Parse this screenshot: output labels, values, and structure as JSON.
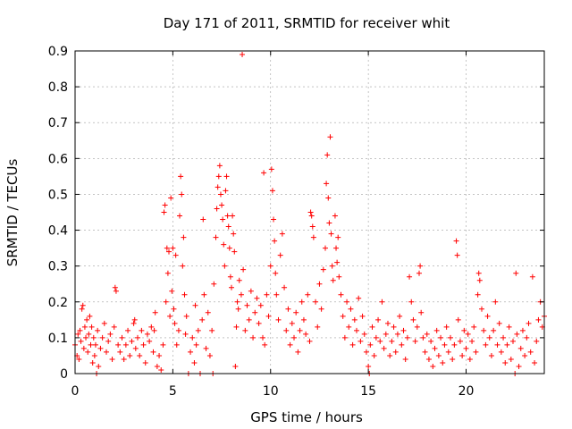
{
  "chart_data": {
    "type": "scatter",
    "title": "Day 171 of 2011, SRMTID for receiver whit",
    "xlabel": "GPS time / hours",
    "ylabel": "SRMTID / TECUs",
    "xlim": [
      0,
      24
    ],
    "ylim": [
      0,
      0.9
    ],
    "xticks": [
      0,
      5,
      10,
      15,
      20
    ],
    "yticks": [
      0,
      0.1,
      0.2,
      0.3,
      0.4,
      0.5,
      0.6,
      0.7,
      0.8,
      0.9
    ],
    "xtick_labels": [
      "0",
      "5",
      "10",
      "15",
      "20"
    ],
    "ytick_labels": [
      "0",
      "0.1",
      "0.2",
      "0.3",
      "0.4",
      "0.5",
      "0.6",
      "0.7",
      "0.8",
      "0.9"
    ],
    "grid": true,
    "marker": "+",
    "color": "#ff0000",
    "series": [
      {
        "name": "SRMTID",
        "points": [
          [
            0.0,
            0.08
          ],
          [
            0.1,
            0.05
          ],
          [
            0.15,
            0.11
          ],
          [
            0.2,
            0.04
          ],
          [
            0.25,
            0.12
          ],
          [
            0.3,
            0.09
          ],
          [
            0.35,
            0.18
          ],
          [
            0.4,
            0.19
          ],
          [
            0.45,
            0.07
          ],
          [
            0.5,
            0.13
          ],
          [
            0.55,
            0.1
          ],
          [
            0.6,
            0.15
          ],
          [
            0.65,
            0.06
          ],
          [
            0.7,
            0.11
          ],
          [
            0.75,
            0.16
          ],
          [
            0.8,
            0.08
          ],
          [
            0.85,
            0.13
          ],
          [
            0.9,
            0.03
          ],
          [
            0.95,
            0.1
          ],
          [
            1.0,
            0.05
          ],
          [
            1.05,
            0.08
          ],
          [
            1.1,
            0.0
          ],
          [
            1.15,
            0.12
          ],
          [
            1.2,
            0.02
          ],
          [
            1.3,
            0.07
          ],
          [
            1.4,
            0.1
          ],
          [
            1.5,
            0.14
          ],
          [
            1.6,
            0.06
          ],
          [
            1.7,
            0.09
          ],
          [
            1.8,
            0.11
          ],
          [
            1.9,
            0.04
          ],
          [
            2.0,
            0.13
          ],
          [
            2.05,
            0.24
          ],
          [
            2.1,
            0.23
          ],
          [
            2.2,
            0.08
          ],
          [
            2.3,
            0.06
          ],
          [
            2.4,
            0.1
          ],
          [
            2.5,
            0.04
          ],
          [
            2.6,
            0.08
          ],
          [
            2.7,
            0.12
          ],
          [
            2.8,
            0.05
          ],
          [
            2.9,
            0.09
          ],
          [
            3.0,
            0.14
          ],
          [
            3.05,
            0.15
          ],
          [
            3.1,
            0.07
          ],
          [
            3.2,
            0.1
          ],
          [
            3.3,
            0.05
          ],
          [
            3.4,
            0.12
          ],
          [
            3.5,
            0.08
          ],
          [
            3.6,
            0.03
          ],
          [
            3.7,
            0.11
          ],
          [
            3.8,
            0.09
          ],
          [
            3.9,
            0.13
          ],
          [
            4.0,
            0.06
          ],
          [
            4.05,
            0.12
          ],
          [
            4.1,
            0.17
          ],
          [
            4.2,
            0.02
          ],
          [
            4.3,
            0.05
          ],
          [
            4.4,
            0.01
          ],
          [
            4.5,
            0.08
          ],
          [
            4.55,
            0.45
          ],
          [
            4.6,
            0.47
          ],
          [
            4.65,
            0.2
          ],
          [
            4.7,
            0.35
          ],
          [
            4.75,
            0.28
          ],
          [
            4.8,
            0.34
          ],
          [
            4.85,
            0.16
          ],
          [
            4.9,
            0.49
          ],
          [
            4.95,
            0.23
          ],
          [
            5.0,
            0.35
          ],
          [
            5.05,
            0.18
          ],
          [
            5.1,
            0.14
          ],
          [
            5.15,
            0.33
          ],
          [
            5.2,
            0.08
          ],
          [
            5.3,
            0.12
          ],
          [
            5.35,
            0.44
          ],
          [
            5.4,
            0.55
          ],
          [
            5.45,
            0.5
          ],
          [
            5.5,
            0.3
          ],
          [
            5.55,
            0.38
          ],
          [
            5.6,
            0.22
          ],
          [
            5.65,
            0.11
          ],
          [
            5.7,
            0.16
          ],
          [
            5.8,
            0.0
          ],
          [
            5.9,
            0.06
          ],
          [
            6.0,
            0.1
          ],
          [
            6.1,
            0.03
          ],
          [
            6.15,
            0.19
          ],
          [
            6.2,
            0.08
          ],
          [
            6.3,
            0.12
          ],
          [
            6.4,
            0.0
          ],
          [
            6.5,
            0.15
          ],
          [
            6.55,
            0.43
          ],
          [
            6.6,
            0.22
          ],
          [
            6.7,
            0.07
          ],
          [
            6.8,
            0.17
          ],
          [
            6.9,
            0.05
          ],
          [
            7.0,
            0.12
          ],
          [
            7.05,
            0.0
          ],
          [
            7.1,
            0.25
          ],
          [
            7.2,
            0.38
          ],
          [
            7.25,
            0.46
          ],
          [
            7.3,
            0.52
          ],
          [
            7.35,
            0.55
          ],
          [
            7.4,
            0.58
          ],
          [
            7.45,
            0.5
          ],
          [
            7.5,
            0.47
          ],
          [
            7.55,
            0.43
          ],
          [
            7.6,
            0.36
          ],
          [
            7.65,
            0.3
          ],
          [
            7.7,
            0.51
          ],
          [
            7.75,
            0.55
          ],
          [
            7.8,
            0.44
          ],
          [
            7.85,
            0.41
          ],
          [
            7.9,
            0.35
          ],
          [
            7.95,
            0.27
          ],
          [
            8.0,
            0.24
          ],
          [
            8.05,
            0.44
          ],
          [
            8.1,
            0.39
          ],
          [
            8.15,
            0.34
          ],
          [
            8.2,
            0.02
          ],
          [
            8.25,
            0.13
          ],
          [
            8.3,
            0.2
          ],
          [
            8.35,
            0.18
          ],
          [
            8.4,
            0.26
          ],
          [
            8.5,
            0.22
          ],
          [
            8.55,
            0.89
          ],
          [
            8.6,
            0.29
          ],
          [
            8.7,
            0.12
          ],
          [
            8.8,
            0.19
          ],
          [
            8.9,
            0.15
          ],
          [
            9.0,
            0.23
          ],
          [
            9.1,
            0.1
          ],
          [
            9.2,
            0.17
          ],
          [
            9.3,
            0.21
          ],
          [
            9.4,
            0.14
          ],
          [
            9.5,
            0.19
          ],
          [
            9.6,
            0.1
          ],
          [
            9.65,
            0.56
          ],
          [
            9.7,
            0.08
          ],
          [
            9.8,
            0.22
          ],
          [
            9.9,
            0.16
          ],
          [
            10.0,
            0.3
          ],
          [
            10.05,
            0.57
          ],
          [
            10.1,
            0.51
          ],
          [
            10.15,
            0.43
          ],
          [
            10.2,
            0.37
          ],
          [
            10.25,
            0.28
          ],
          [
            10.3,
            0.22
          ],
          [
            10.4,
            0.15
          ],
          [
            10.5,
            0.33
          ],
          [
            10.6,
            0.39
          ],
          [
            10.7,
            0.24
          ],
          [
            10.8,
            0.12
          ],
          [
            10.9,
            0.18
          ],
          [
            11.0,
            0.08
          ],
          [
            11.1,
            0.14
          ],
          [
            11.2,
            0.1
          ],
          [
            11.3,
            0.17
          ],
          [
            11.4,
            0.06
          ],
          [
            11.5,
            0.12
          ],
          [
            11.6,
            0.2
          ],
          [
            11.7,
            0.15
          ],
          [
            11.8,
            0.11
          ],
          [
            11.9,
            0.22
          ],
          [
            12.0,
            0.09
          ],
          [
            12.05,
            0.45
          ],
          [
            12.1,
            0.44
          ],
          [
            12.15,
            0.41
          ],
          [
            12.2,
            0.38
          ],
          [
            12.3,
            0.2
          ],
          [
            12.4,
            0.13
          ],
          [
            12.5,
            0.25
          ],
          [
            12.6,
            0.18
          ],
          [
            12.7,
            0.29
          ],
          [
            12.8,
            0.35
          ],
          [
            12.85,
            0.53
          ],
          [
            12.9,
            0.61
          ],
          [
            12.95,
            0.49
          ],
          [
            13.0,
            0.42
          ],
          [
            13.05,
            0.66
          ],
          [
            13.1,
            0.39
          ],
          [
            13.15,
            0.3
          ],
          [
            13.2,
            0.26
          ],
          [
            13.3,
            0.44
          ],
          [
            13.35,
            0.35
          ],
          [
            13.4,
            0.31
          ],
          [
            13.45,
            0.38
          ],
          [
            13.5,
            0.27
          ],
          [
            13.6,
            0.22
          ],
          [
            13.7,
            0.16
          ],
          [
            13.8,
            0.1
          ],
          [
            13.9,
            0.2
          ],
          [
            14.0,
            0.13
          ],
          [
            14.1,
            0.18
          ],
          [
            14.2,
            0.08
          ],
          [
            14.3,
            0.15
          ],
          [
            14.4,
            0.12
          ],
          [
            14.5,
            0.21
          ],
          [
            14.6,
            0.09
          ],
          [
            14.7,
            0.16
          ],
          [
            14.8,
            0.11
          ],
          [
            14.9,
            0.06
          ],
          [
            15.0,
            0.02
          ],
          [
            15.05,
            0.0
          ],
          [
            15.1,
            0.08
          ],
          [
            15.2,
            0.13
          ],
          [
            15.3,
            0.05
          ],
          [
            15.4,
            0.1
          ],
          [
            15.5,
            0.15
          ],
          [
            15.6,
            0.09
          ],
          [
            15.7,
            0.2
          ],
          [
            15.8,
            0.07
          ],
          [
            15.9,
            0.11
          ],
          [
            16.0,
            0.14
          ],
          [
            16.1,
            0.05
          ],
          [
            16.2,
            0.09
          ],
          [
            16.3,
            0.13
          ],
          [
            16.4,
            0.06
          ],
          [
            16.5,
            0.11
          ],
          [
            16.6,
            0.16
          ],
          [
            16.7,
            0.08
          ],
          [
            16.8,
            0.12
          ],
          [
            16.9,
            0.04
          ],
          [
            17.0,
            0.1
          ],
          [
            17.1,
            0.27
          ],
          [
            17.2,
            0.2
          ],
          [
            17.3,
            0.15
          ],
          [
            17.4,
            0.09
          ],
          [
            17.5,
            0.13
          ],
          [
            17.6,
            0.28
          ],
          [
            17.65,
            0.3
          ],
          [
            17.7,
            0.17
          ],
          [
            17.8,
            0.1
          ],
          [
            17.9,
            0.06
          ],
          [
            18.0,
            0.11
          ],
          [
            18.1,
            0.04
          ],
          [
            18.2,
            0.09
          ],
          [
            18.3,
            0.02
          ],
          [
            18.4,
            0.07
          ],
          [
            18.5,
            0.12
          ],
          [
            18.6,
            0.05
          ],
          [
            18.7,
            0.1
          ],
          [
            18.8,
            0.03
          ],
          [
            18.9,
            0.08
          ],
          [
            19.0,
            0.13
          ],
          [
            19.1,
            0.06
          ],
          [
            19.2,
            0.1
          ],
          [
            19.3,
            0.04
          ],
          [
            19.4,
            0.08
          ],
          [
            19.5,
            0.37
          ],
          [
            19.55,
            0.33
          ],
          [
            19.6,
            0.15
          ],
          [
            19.7,
            0.09
          ],
          [
            19.8,
            0.05
          ],
          [
            19.9,
            0.12
          ],
          [
            20.0,
            0.07
          ],
          [
            20.1,
            0.11
          ],
          [
            20.2,
            0.04
          ],
          [
            20.3,
            0.09
          ],
          [
            20.4,
            0.13
          ],
          [
            20.5,
            0.06
          ],
          [
            20.6,
            0.22
          ],
          [
            20.65,
            0.28
          ],
          [
            20.7,
            0.26
          ],
          [
            20.8,
            0.18
          ],
          [
            20.9,
            0.12
          ],
          [
            21.0,
            0.08
          ],
          [
            21.1,
            0.16
          ],
          [
            21.2,
            0.1
          ],
          [
            21.3,
            0.05
          ],
          [
            21.4,
            0.12
          ],
          [
            21.5,
            0.2
          ],
          [
            21.6,
            0.08
          ],
          [
            21.7,
            0.14
          ],
          [
            21.8,
            0.06
          ],
          [
            21.9,
            0.1
          ],
          [
            22.0,
            0.03
          ],
          [
            22.1,
            0.08
          ],
          [
            22.2,
            0.13
          ],
          [
            22.3,
            0.04
          ],
          [
            22.4,
            0.09
          ],
          [
            22.5,
            0.0
          ],
          [
            22.55,
            0.28
          ],
          [
            22.6,
            0.11
          ],
          [
            22.7,
            0.02
          ],
          [
            22.8,
            0.07
          ],
          [
            22.9,
            0.12
          ],
          [
            23.0,
            0.05
          ],
          [
            23.1,
            0.1
          ],
          [
            23.2,
            0.14
          ],
          [
            23.3,
            0.06
          ],
          [
            23.4,
            0.27
          ],
          [
            23.5,
            0.03
          ],
          [
            23.6,
            0.09
          ],
          [
            23.7,
            0.15
          ],
          [
            23.8,
            0.2
          ],
          [
            23.9,
            0.13
          ],
          [
            24.0,
            0.16
          ]
        ]
      }
    ]
  }
}
